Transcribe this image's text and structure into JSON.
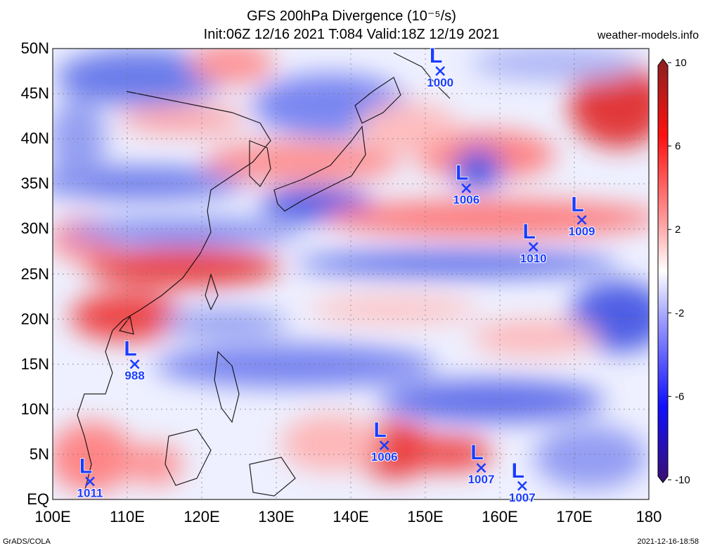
{
  "title_line1": "GFS 200hPa Divergence (10⁻⁵/s)",
  "title_line2": "Init:06Z 12/16 2021 T:084 Valid:18Z 12/19 2021",
  "site": "weather-models.info",
  "footer_left": "GrADS/COLA",
  "footer_right": "2021-12-16-18:58",
  "lat_labels": [
    "50N",
    "45N",
    "40N",
    "35N",
    "30N",
    "25N",
    "20N",
    "15N",
    "10N",
    "5N",
    "EQ"
  ],
  "lon_labels": [
    "100E",
    "110E",
    "120E",
    "130E",
    "140E",
    "150E",
    "160E",
    "170E",
    "180"
  ],
  "colorbar": {
    "ticks": [
      "10",
      "6",
      "2",
      "-2",
      "-6",
      "-10"
    ],
    "colors": [
      "#8b2020",
      "#ff1010",
      "#ff8080",
      "#ffffff",
      "#8080ff",
      "#1010ff",
      "#3a1070"
    ]
  },
  "lows": [
    {
      "pressure": "1000",
      "lon": 152,
      "lat": 47.5
    },
    {
      "pressure": "1006",
      "lon": 155.5,
      "lat": 34.5
    },
    {
      "pressure": "1009",
      "lon": 171,
      "lat": 31
    },
    {
      "pressure": "1010",
      "lon": 164.5,
      "lat": 28
    },
    {
      "pressure": "988",
      "lon": 111,
      "lat": 15
    },
    {
      "pressure": "1006",
      "lon": 144.5,
      "lat": 6
    },
    {
      "pressure": "1007",
      "lon": 157.5,
      "lat": 3.5
    },
    {
      "pressure": "1007",
      "lon": 163,
      "lat": 1.5
    },
    {
      "pressure": "1011",
      "lon": 105,
      "lat": 2
    }
  ],
  "low_symbol": "L",
  "colors": {
    "low": "#1a3cff",
    "grid": "#777777"
  }
}
